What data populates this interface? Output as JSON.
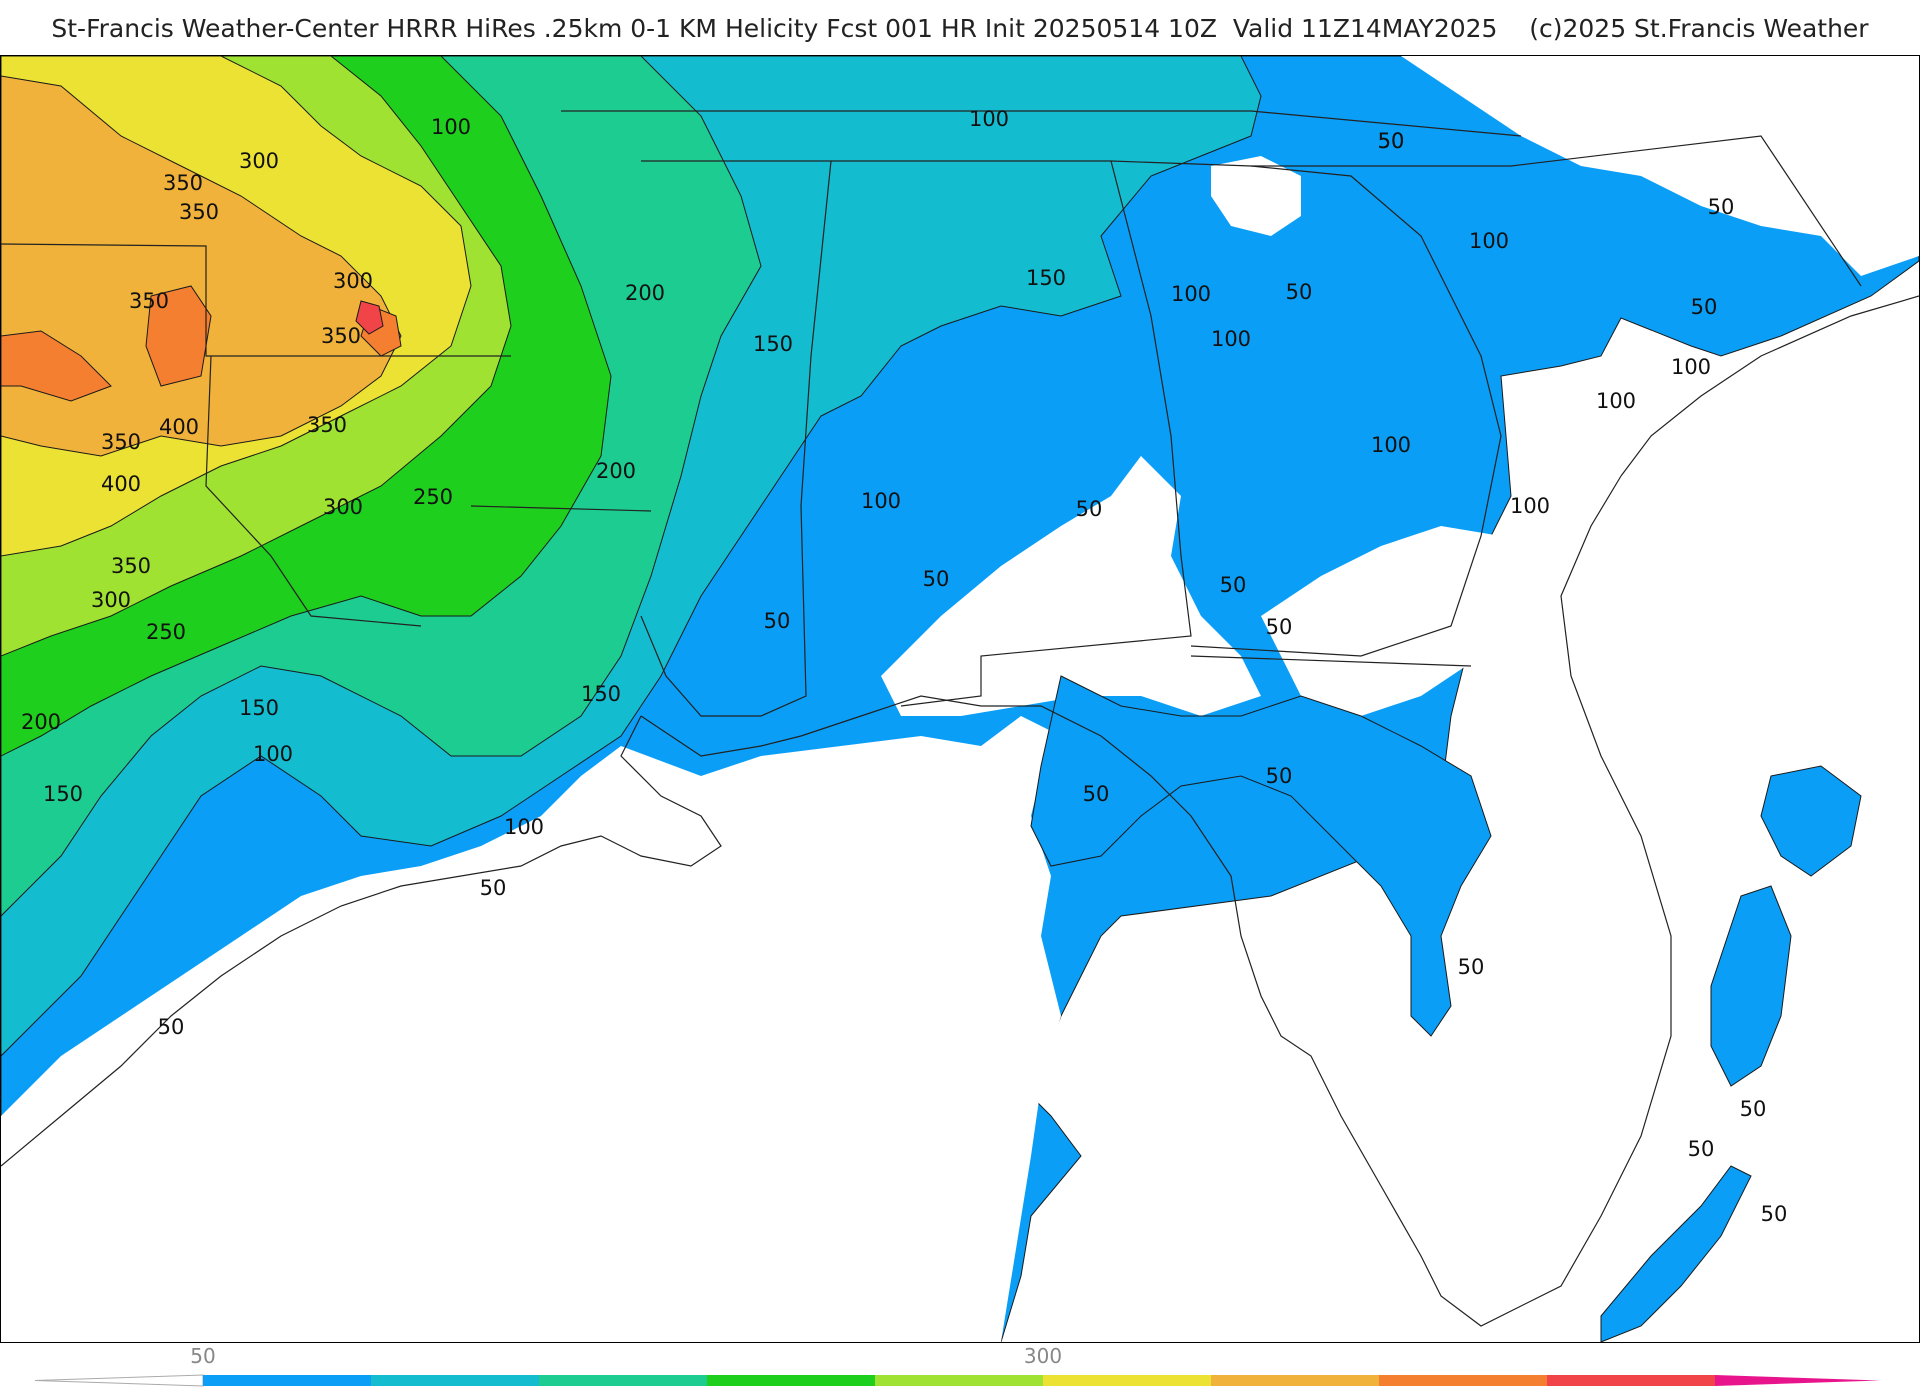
{
  "header": {
    "title": "St-Francis Weather-Center HRRR HiRes .25km 0-1 KM Helicity Fcst 001 HR Init 20250514 10Z  Valid 11Z14MAY2025    (c)2025 St.Francis Weather"
  },
  "map": {
    "field": "0-1 KM Helicity",
    "colors": {
      "c50": "#0a9ef6",
      "c100": "#14bcd0",
      "c150": "#1ccc90",
      "c200": "#1ecf1e",
      "c250": "#9fe232",
      "c300": "#ebe233",
      "c350": "#f0b23a",
      "c400": "#f57f31",
      "c450": "#f04448",
      "c500": "#e8148c",
      "land": "#ffffff",
      "border": "#222222",
      "county": "#bbbbbb"
    },
    "contour_labels": [
      {
        "text": "100",
        "value": 100,
        "region": "north-mississippi"
      },
      {
        "text": "100",
        "value": 100,
        "region": "tennessee"
      },
      {
        "text": "50",
        "value": 50,
        "region": "north-carolina"
      },
      {
        "text": "50",
        "value": 50,
        "region": "virginia-coast"
      },
      {
        "text": "300",
        "value": 300,
        "region": "oklahoma"
      },
      {
        "text": "350",
        "value": 350,
        "region": "oklahoma"
      },
      {
        "text": "350",
        "value": 350,
        "region": "oklahoma"
      },
      {
        "text": "300",
        "value": 300,
        "region": "oklahoma-east"
      },
      {
        "text": "350",
        "value": 350,
        "region": "oklahoma-west"
      },
      {
        "text": "350",
        "value": 350,
        "region": "oklahoma-east"
      },
      {
        "text": "400",
        "value": 400,
        "region": "texas-north"
      },
      {
        "text": "350",
        "value": 350,
        "region": "arkansas-west"
      },
      {
        "text": "350",
        "value": 350,
        "region": "texas-north"
      },
      {
        "text": "400",
        "value": 400,
        "region": "texas-north"
      },
      {
        "text": "300",
        "value": 300,
        "region": "arkansas"
      },
      {
        "text": "350",
        "value": 350,
        "region": "texas-east"
      },
      {
        "text": "300",
        "value": 300,
        "region": "texas-east"
      },
      {
        "text": "250",
        "value": 250,
        "region": "arkansas-south"
      },
      {
        "text": "250",
        "value": 250,
        "region": "texas-east"
      },
      {
        "text": "200",
        "value": 200,
        "region": "louisiana-north"
      },
      {
        "text": "200",
        "value": 200,
        "region": "mississippi"
      },
      {
        "text": "200",
        "value": 200,
        "region": "texas-southeast"
      },
      {
        "text": "150",
        "value": 150,
        "region": "mississippi-north"
      },
      {
        "text": "150",
        "value": 150,
        "region": "alabama-north"
      },
      {
        "text": "150",
        "value": 150,
        "region": "louisiana"
      },
      {
        "text": "150",
        "value": 150,
        "region": "mississippi-south"
      },
      {
        "text": "150",
        "value": 150,
        "region": "texas-coast"
      },
      {
        "text": "100",
        "value": 100,
        "region": "alabama"
      },
      {
        "text": "100",
        "value": 100,
        "region": "georgia-north"
      },
      {
        "text": "100",
        "value": 100,
        "region": "alabama-west"
      },
      {
        "text": "100",
        "value": 100,
        "region": "alabama-central"
      },
      {
        "text": "100",
        "value": 100,
        "region": "north-carolina"
      },
      {
        "text": "100",
        "value": 100,
        "region": "north-carolina"
      },
      {
        "text": "100",
        "value": 100,
        "region": "georgia-north"
      },
      {
        "text": "100",
        "value": 100,
        "region": "south-carolina"
      },
      {
        "text": "100",
        "value": 100,
        "region": "louisiana-coast"
      },
      {
        "text": "100",
        "value": 100,
        "region": "texas-coast"
      },
      {
        "text": "50",
        "value": 50,
        "region": "south-carolina"
      },
      {
        "text": "50",
        "value": 50,
        "region": "south-carolina-coast"
      },
      {
        "text": "50",
        "value": 50,
        "region": "south-carolina-coast"
      },
      {
        "text": "50",
        "value": 50,
        "region": "alabama-south"
      },
      {
        "text": "50",
        "value": 50,
        "region": "alabama-south"
      },
      {
        "text": "50",
        "value": 50,
        "region": "mississippi-south"
      },
      {
        "text": "50",
        "value": 50,
        "region": "georgia-south"
      },
      {
        "text": "50",
        "value": 50,
        "region": "georgia-south"
      },
      {
        "text": "50",
        "value": 50,
        "region": "north-carolina"
      },
      {
        "text": "50",
        "value": 50,
        "region": "gulf"
      },
      {
        "text": "50",
        "value": 50,
        "region": "florida-panhandle"
      },
      {
        "text": "50",
        "value": 50,
        "region": "louisiana-coast"
      },
      {
        "text": "50",
        "value": 50,
        "region": "texas-coast"
      },
      {
        "text": "50",
        "value": 50,
        "region": "florida-west-coast"
      },
      {
        "text": "50",
        "value": 50,
        "region": "atlantic"
      },
      {
        "text": "50",
        "value": 50,
        "region": "atlantic-south"
      }
    ]
  },
  "colorbar": {
    "ticks": [
      {
        "label": "50",
        "value": 50
      },
      {
        "label": "300",
        "value": 300
      }
    ],
    "levels": [
      0,
      50,
      100,
      150,
      200,
      250,
      300,
      350,
      400,
      450,
      500,
      550
    ]
  }
}
